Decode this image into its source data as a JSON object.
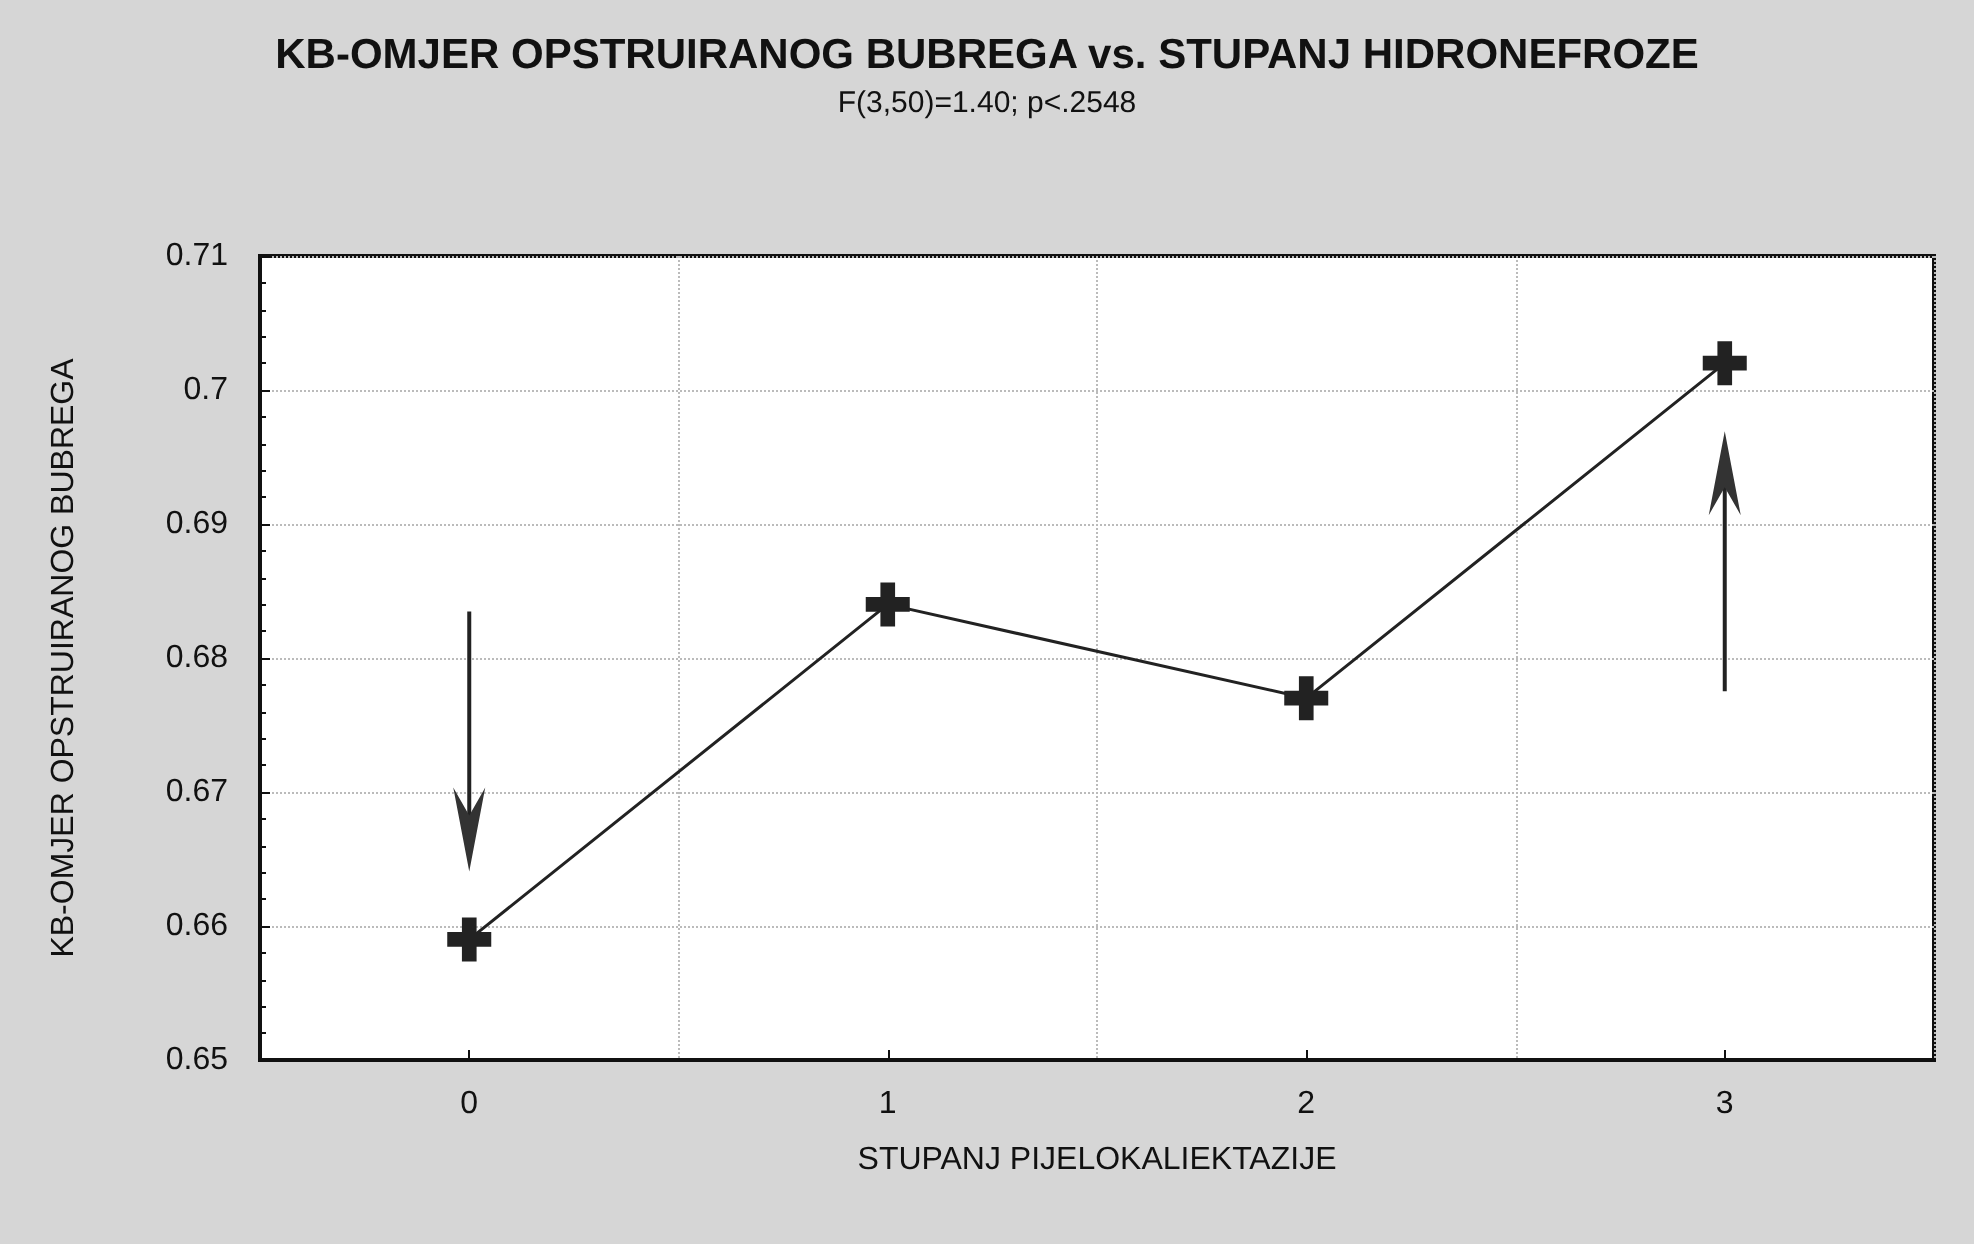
{
  "chart_data": {
    "type": "line",
    "title": "KB-OMJER OPSTRUIRANOG BUBREGA vs. STUPANJ HIDRONEFROZE",
    "subtitle": "F(3,50)=1.40; p<.2548",
    "xlabel": "STUPANJ PIJELOKALIEKTAZIJE",
    "ylabel": "KB-OMJER OPSTRUIRANOG BUBREGA",
    "categories": [
      "0",
      "1",
      "2",
      "3"
    ],
    "series": [
      {
        "color": "#222222",
        "values": [
          0.659,
          0.684,
          0.677,
          0.702
        ]
      }
    ],
    "ylim": [
      0.65,
      0.71
    ],
    "yticks": [
      0.65,
      0.66,
      0.67,
      0.68,
      0.69,
      0.7,
      0.71
    ],
    "grid": true,
    "marker": "cross",
    "line_style": "solid"
  }
}
